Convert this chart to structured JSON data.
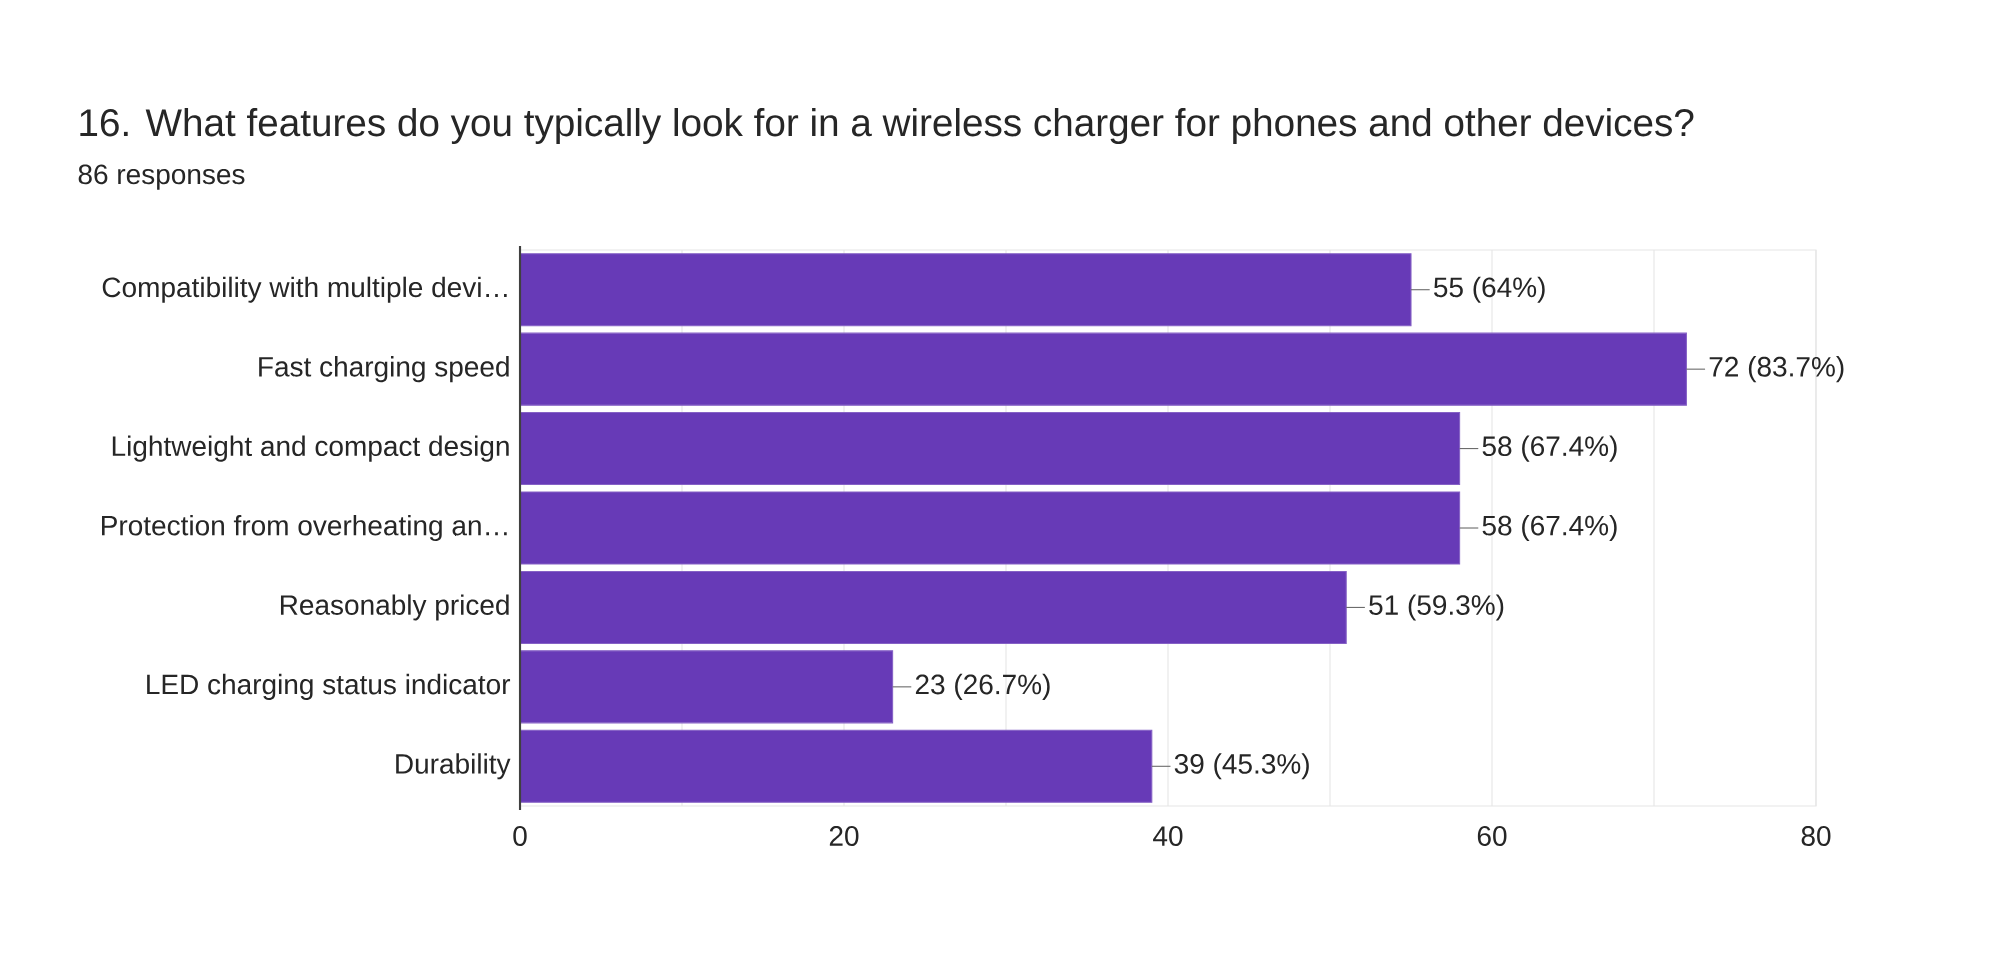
{
  "chart_data": {
    "type": "bar",
    "orientation": "horizontal",
    "title": "16. What features do you typically look for in a wireless charger for phones and other devices?",
    "subtitle": "86 responses",
    "categories": [
      "Compatibility with multiple devi…",
      "Fast charging speed",
      "Lightweight and compact design",
      "Protection from overheating an…",
      "Reasonably priced",
      "LED charging status indicator",
      "Durability"
    ],
    "values": [
      55,
      72,
      58,
      58,
      51,
      23,
      39
    ],
    "value_labels": [
      "55 (64%)",
      "72 (83.7%)",
      "58 (67.4%)",
      "58 (67.4%)",
      "51 (59.3%)",
      "23 (26.7%)",
      "39 (45.3%)"
    ],
    "color": "#673ab7",
    "xlim": [
      0,
      80
    ],
    "xticks": [
      0,
      {
        "value": 10,
        "label": null
      },
      20,
      {
        "value": 30,
        "label": null
      },
      40,
      {
        "value": 50,
        "label": null
      },
      60,
      {
        "value": 70,
        "label": null
      },
      80
    ],
    "grid": "x"
  }
}
